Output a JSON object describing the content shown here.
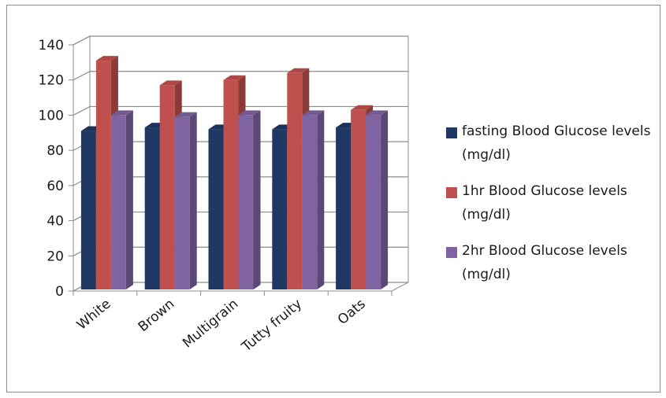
{
  "chart_data": {
    "type": "bar",
    "style": "3d-clustered-column",
    "categories": [
      "White",
      "Brown",
      "Multigrain",
      "Tutty fruity",
      "Oats"
    ],
    "series": [
      {
        "name": "fasting Blood Glucose levels (mg/dl)",
        "values": [
          91,
          93,
          92,
          92,
          93
        ],
        "color": "#1f3864"
      },
      {
        "name": "1hr Blood Glucose levels (mg/dl)",
        "values": [
          131,
          117,
          120,
          124,
          103
        ],
        "color": "#c0504d"
      },
      {
        "name": "2hr Blood Glucose levels (mg/dl)",
        "values": [
          100,
          99,
          100,
          100,
          100
        ],
        "color": "#8064a2"
      }
    ],
    "ylim": [
      0,
      140
    ],
    "yticks": [
      0,
      20,
      40,
      60,
      80,
      100,
      120,
      140
    ],
    "grid": true,
    "legend_position": "right",
    "title": "",
    "xlabel": "",
    "ylabel": ""
  }
}
